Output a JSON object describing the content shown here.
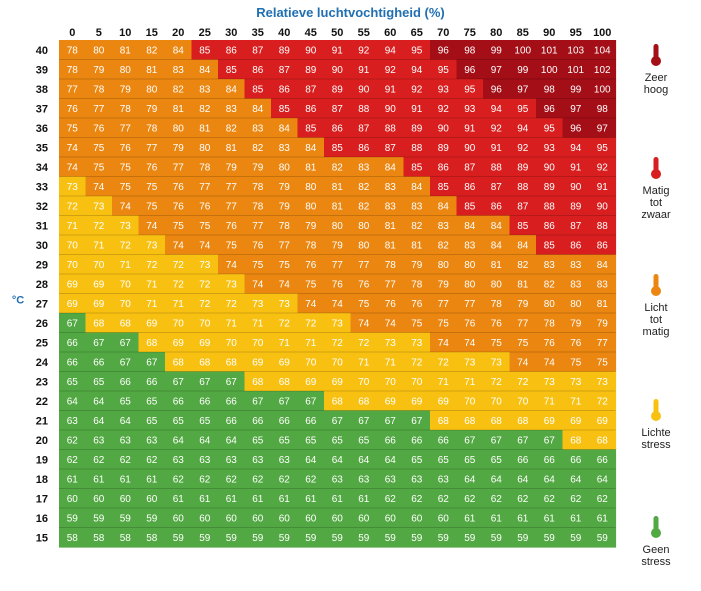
{
  "chart_data": {
    "type": "heatmap",
    "title": "Relatieve luchtvochtigheid (%)",
    "xlabel": "Relatieve luchtvochtigheid (%)",
    "ylabel": "°C",
    "x": [
      0,
      5,
      10,
      15,
      20,
      25,
      30,
      35,
      40,
      45,
      50,
      55,
      60,
      65,
      70,
      75,
      80,
      85,
      90,
      95,
      100
    ],
    "y": [
      40,
      39,
      38,
      37,
      36,
      35,
      34,
      33,
      32,
      31,
      30,
      29,
      28,
      27,
      26,
      25,
      24,
      23,
      22,
      21,
      20,
      19,
      18,
      17,
      16,
      15
    ],
    "values": [
      [
        78,
        80,
        81,
        82,
        84,
        85,
        86,
        87,
        89,
        90,
        91,
        92,
        94,
        95,
        96,
        98,
        99,
        100,
        101,
        103,
        104
      ],
      [
        78,
        79,
        80,
        81,
        83,
        84,
        85,
        86,
        87,
        89,
        90,
        91,
        92,
        94,
        95,
        96,
        97,
        99,
        100,
        101,
        102
      ],
      [
        77,
        78,
        79,
        80,
        82,
        83,
        84,
        85,
        86,
        87,
        89,
        90,
        91,
        92,
        93,
        95,
        96,
        97,
        98,
        99,
        100
      ],
      [
        76,
        77,
        78,
        79,
        81,
        82,
        83,
        84,
        85,
        86,
        87,
        88,
        90,
        91,
        92,
        93,
        94,
        95,
        96,
        97,
        98
      ],
      [
        75,
        76,
        77,
        78,
        80,
        81,
        82,
        83,
        84,
        85,
        86,
        87,
        88,
        89,
        90,
        91,
        92,
        94,
        95,
        96,
        97
      ],
      [
        74,
        75,
        76,
        77,
        79,
        80,
        81,
        82,
        83,
        84,
        85,
        86,
        87,
        88,
        89,
        90,
        91,
        92,
        93,
        94,
        95
      ],
      [
        74,
        75,
        75,
        76,
        77,
        78,
        79,
        79,
        80,
        81,
        82,
        83,
        84,
        85,
        86,
        87,
        88,
        89,
        90,
        91,
        92
      ],
      [
        73,
        74,
        75,
        75,
        76,
        77,
        77,
        78,
        79,
        80,
        81,
        82,
        83,
        84,
        85,
        86,
        87,
        88,
        89,
        90,
        91
      ],
      [
        72,
        73,
        74,
        75,
        76,
        76,
        77,
        78,
        79,
        80,
        81,
        82,
        83,
        83,
        84,
        85,
        86,
        87,
        88,
        89,
        90
      ],
      [
        71,
        72,
        73,
        74,
        75,
        75,
        76,
        77,
        78,
        79,
        80,
        80,
        81,
        82,
        83,
        84,
        84,
        85,
        86,
        87,
        88
      ],
      [
        70,
        71,
        72,
        73,
        74,
        74,
        75,
        76,
        77,
        78,
        79,
        80,
        81,
        81,
        82,
        83,
        84,
        84,
        85,
        86,
        86
      ],
      [
        70,
        70,
        71,
        72,
        72,
        73,
        74,
        75,
        75,
        76,
        77,
        77,
        78,
        79,
        80,
        80,
        81,
        82,
        83,
        83,
        84
      ],
      [
        69,
        69,
        70,
        71,
        72,
        72,
        73,
        74,
        74,
        75,
        76,
        76,
        77,
        78,
        79,
        80,
        80,
        81,
        82,
        83,
        83
      ],
      [
        69,
        69,
        70,
        71,
        71,
        72,
        72,
        73,
        73,
        74,
        74,
        75,
        76,
        76,
        77,
        77,
        78,
        79,
        80,
        80,
        81
      ],
      [
        67,
        68,
        68,
        69,
        70,
        70,
        71,
        71,
        72,
        72,
        73,
        74,
        74,
        75,
        75,
        76,
        76,
        77,
        78,
        79,
        79
      ],
      [
        66,
        67,
        67,
        68,
        69,
        69,
        70,
        70,
        71,
        71,
        72,
        72,
        73,
        73,
        74,
        74,
        75,
        75,
        76,
        76,
        77
      ],
      [
        66,
        66,
        67,
        67,
        68,
        68,
        68,
        69,
        69,
        70,
        70,
        71,
        71,
        72,
        72,
        73,
        73,
        74,
        74,
        75,
        75
      ],
      [
        65,
        65,
        66,
        66,
        67,
        67,
        67,
        68,
        68,
        69,
        69,
        70,
        70,
        70,
        71,
        71,
        72,
        72,
        73,
        73,
        73
      ],
      [
        64,
        64,
        65,
        65,
        66,
        66,
        66,
        67,
        67,
        67,
        68,
        68,
        69,
        69,
        69,
        70,
        70,
        70,
        71,
        71,
        72
      ],
      [
        63,
        64,
        64,
        65,
        65,
        65,
        66,
        66,
        66,
        66,
        67,
        67,
        67,
        67,
        68,
        68,
        68,
        68,
        69,
        69,
        69
      ],
      [
        62,
        63,
        63,
        63,
        64,
        64,
        64,
        65,
        65,
        65,
        65,
        65,
        66,
        66,
        66,
        67,
        67,
        67,
        67,
        68,
        68
      ],
      [
        62,
        62,
        62,
        62,
        63,
        63,
        63,
        63,
        63,
        64,
        64,
        64,
        64,
        65,
        65,
        65,
        65,
        66,
        66,
        66,
        66
      ],
      [
        61,
        61,
        61,
        61,
        62,
        62,
        62,
        62,
        62,
        62,
        63,
        63,
        63,
        63,
        63,
        64,
        64,
        64,
        64,
        64,
        64
      ],
      [
        60,
        60,
        60,
        60,
        61,
        61,
        61,
        61,
        61,
        61,
        61,
        61,
        62,
        62,
        62,
        62,
        62,
        62,
        62,
        62,
        62
      ],
      [
        59,
        59,
        59,
        59,
        60,
        60,
        60,
        60,
        60,
        60,
        60,
        60,
        60,
        60,
        60,
        61,
        61,
        61,
        61,
        61,
        61
      ],
      [
        58,
        58,
        58,
        58,
        59,
        59,
        59,
        59,
        59,
        59,
        59,
        59,
        59,
        59,
        59,
        59,
        59,
        59,
        59,
        59,
        59
      ]
    ],
    "colors": {
      "geen_stress": "#52a842",
      "lichte_stress": "#f8c112",
      "licht_tot_matig": "#eb8610",
      "matig_tot_zwaar": "#d81e1e",
      "zeer_hoog": "#a30e17"
    },
    "thresholds": {
      "lichte_stress_min": 68,
      "licht_tot_matig_min": 74,
      "matig_tot_zwaar_min": 85,
      "zeer_hoog_min": 96
    }
  },
  "legend": [
    {
      "label": "Zeer\nhoog",
      "color": "#a30e17"
    },
    {
      "label": "Matig\ntot\nzwaar",
      "color": "#d81e1e"
    },
    {
      "label": "Licht\ntot\nmatig",
      "color": "#eb8610"
    },
    {
      "label": "Lichte\nstress",
      "color": "#f8c112"
    },
    {
      "label": "Geen\nstress",
      "color": "#52a842"
    }
  ]
}
